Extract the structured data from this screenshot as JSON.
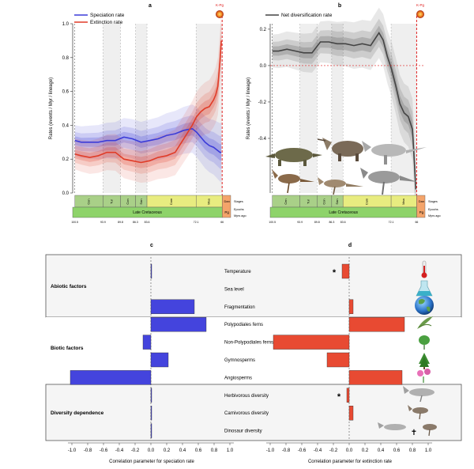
{
  "panels": {
    "a_label": "a",
    "b_label": "b",
    "c_label": "c",
    "d_label": "d"
  },
  "kpg_label": "K-Pg",
  "colors": {
    "speciation": "#3c3cd8",
    "extinction": "#e03c28",
    "net": "#444444",
    "kpg": "#e02020",
    "bar_blue": "#4444dd",
    "bar_red": "#e84a32",
    "stage_green": "#a9d088",
    "stage_yellow": "#e8ec80",
    "pg_orange": "#f4a46a",
    "epoch_green": "#8ed36a"
  },
  "timescale": {
    "stages_label": "Stages",
    "epochs_label": "Epochs",
    "myrs_label": "Myrs ago",
    "epoch_name": "Late Cretaceous",
    "pg_epoch": "Pg",
    "stages": [
      {
        "name": "Cen",
        "start": 100.5,
        "end": 93.9
      },
      {
        "name": "Tur",
        "start": 93.9,
        "end": 89.8
      },
      {
        "name": "Con",
        "start": 89.8,
        "end": 86.3
      },
      {
        "name": "San",
        "start": 86.3,
        "end": 83.6
      },
      {
        "name": "Cam",
        "start": 83.6,
        "end": 72.1
      },
      {
        "name": "Maa",
        "start": 72.1,
        "end": 66.0
      }
    ],
    "pg_stage": "Dan",
    "ticks": [
      "100.5",
      "93.9",
      "89.8",
      "86.3",
      "83.6",
      "72.1",
      "66"
    ]
  },
  "chart_data": [
    {
      "panel": "a",
      "type": "line",
      "ylabel": "Rates (events / Myr / lineage)",
      "xlim": [
        101,
        64
      ],
      "ylim": [
        0.0,
        1.0
      ],
      "yticks": [
        "0.0",
        "0.2",
        "0.4",
        "0.6",
        "0.8",
        "1.0"
      ],
      "legend": "top-left",
      "grid": false,
      "x": [
        100.5,
        99,
        97,
        95,
        93,
        91,
        89,
        87,
        85,
        83,
        81,
        79,
        77,
        75,
        73,
        72,
        71,
        70,
        69,
        68,
        67.5,
        67,
        66.5,
        66.2
      ],
      "series": [
        {
          "name": "Speciation rate",
          "values": [
            0.31,
            0.3,
            0.3,
            0.3,
            0.31,
            0.31,
            0.33,
            0.32,
            0.3,
            0.31,
            0.32,
            0.34,
            0.35,
            0.37,
            0.38,
            0.36,
            0.33,
            0.3,
            0.28,
            0.27,
            0.26,
            0.25,
            0.24,
            0.24
          ]
        },
        {
          "name": "Extinction rate",
          "values": [
            0.23,
            0.22,
            0.21,
            0.22,
            0.24,
            0.24,
            0.2,
            0.19,
            0.18,
            0.19,
            0.21,
            0.22,
            0.24,
            0.32,
            0.4,
            0.45,
            0.48,
            0.5,
            0.51,
            0.55,
            0.58,
            0.63,
            0.78,
            0.9
          ]
        }
      ]
    },
    {
      "panel": "b",
      "type": "line",
      "ylabel": "Rates (events / Myr / lineage)",
      "xlim": [
        101,
        64
      ],
      "ylim": [
        -0.7,
        0.23
      ],
      "yticks": [
        "-0.4",
        "-0.2",
        "0.0",
        "0.2"
      ],
      "legend": "top-left",
      "grid": false,
      "x": [
        100.5,
        99,
        97,
        95,
        93,
        91,
        89,
        87,
        85,
        83,
        81,
        79,
        77,
        75,
        74,
        73,
        72,
        71,
        70,
        69,
        68,
        67,
        66.5,
        66.2
      ],
      "series": [
        {
          "name": "Net diversification rate",
          "values": [
            0.08,
            0.08,
            0.09,
            0.08,
            0.07,
            0.07,
            0.13,
            0.13,
            0.12,
            0.12,
            0.11,
            0.12,
            0.11,
            0.18,
            0.14,
            0.05,
            -0.02,
            -0.11,
            -0.21,
            -0.26,
            -0.28,
            -0.35,
            -0.55,
            -0.68
          ]
        }
      ]
    },
    {
      "panel": "c",
      "type": "bar",
      "orientation": "horizontal",
      "xlabel": "Correlation parameter for speciation rate",
      "xlim": [
        -1.1,
        1.1
      ],
      "xticks": [
        "-1.0",
        "-0.8",
        "-0.6",
        "-0.4",
        "-0.2",
        "0.0",
        "0.2",
        "0.4",
        "0.6",
        "0.8",
        "1.0"
      ],
      "categories": [
        "Temperature",
        "Sea level",
        "Fragmentation",
        "Polypodiales ferns",
        "Non-Polypodiales ferns",
        "Gymnosperms",
        "Angiosperms",
        "Herbivorous diversity",
        "Carnivorous diversity",
        "Dinosaur diversity"
      ],
      "values": [
        0.01,
        0.0,
        0.55,
        0.7,
        -0.1,
        0.22,
        -1.02,
        0.01,
        0.01,
        0.01
      ]
    },
    {
      "panel": "d",
      "type": "bar",
      "orientation": "horizontal",
      "xlabel": "Correlation parameter for extinction rate",
      "xlim": [
        -1.1,
        1.1
      ],
      "xticks": [
        "-1.0",
        "-0.8",
        "-0.6",
        "-0.4",
        "-0.2",
        "0.0",
        "0.2",
        "0.4",
        "0.6",
        "0.8",
        "1.0"
      ],
      "categories": [
        "Temperature",
        "Sea level",
        "Fragmentation",
        "Polypodiales ferns",
        "Non-Polypodiales ferns",
        "Gymnosperms",
        "Angiosperms",
        "Herbivorous diversity",
        "Carnivorous diversity",
        "Dinosaur diversity"
      ],
      "values": [
        -0.09,
        0.0,
        0.05,
        0.7,
        -0.96,
        -0.28,
        0.67,
        -0.03,
        0.05,
        0.0
      ],
      "significance": [
        "*",
        "",
        "",
        "",
        "",
        "",
        "",
        "*",
        "",
        ""
      ]
    }
  ],
  "groups": [
    {
      "name": "Abiotic factors",
      "rows": [
        0,
        2
      ]
    },
    {
      "name": "Biotic factors",
      "rows": [
        3,
        6
      ]
    },
    {
      "name": "Diversity dependence",
      "rows": [
        7,
        9
      ]
    }
  ],
  "dinosaur_dagger": "✝"
}
